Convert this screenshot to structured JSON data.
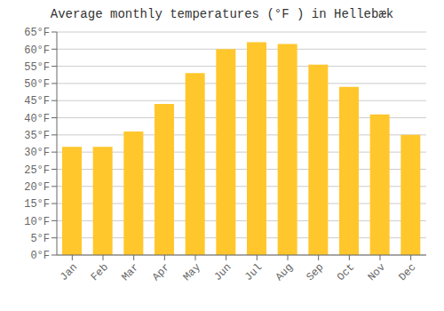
{
  "chart_data": {
    "type": "bar",
    "title": "Average monthly temperatures (°F ) in Hellebæk",
    "categories": [
      "Jan",
      "Feb",
      "Mar",
      "Apr",
      "May",
      "Jun",
      "Jul",
      "Aug",
      "Sep",
      "Oct",
      "Nov",
      "Dec"
    ],
    "values": [
      31.5,
      31.5,
      36,
      44,
      53,
      60,
      62,
      61.5,
      55.5,
      49,
      41,
      35
    ],
    "color": "#FFC72C",
    "ylim": [
      0,
      65
    ],
    "yticks": [
      {
        "value": 0,
        "label": "0°F"
      },
      {
        "value": 5,
        "label": "5°F"
      },
      {
        "value": 10,
        "label": "10°F"
      },
      {
        "value": 15,
        "label": "15°F"
      },
      {
        "value": 20,
        "label": "20°F"
      },
      {
        "value": 25,
        "label": "25°F"
      },
      {
        "value": 30,
        "label": "30°F"
      },
      {
        "value": 35,
        "label": "35°F"
      },
      {
        "value": 40,
        "label": "40°F"
      },
      {
        "value": 45,
        "label": "45°F"
      },
      {
        "value": 50,
        "label": "50°F"
      },
      {
        "value": 55,
        "label": "55°F"
      },
      {
        "value": 60,
        "label": "60°F"
      },
      {
        "value": 65,
        "label": "65°F"
      }
    ],
    "grid": true
  }
}
